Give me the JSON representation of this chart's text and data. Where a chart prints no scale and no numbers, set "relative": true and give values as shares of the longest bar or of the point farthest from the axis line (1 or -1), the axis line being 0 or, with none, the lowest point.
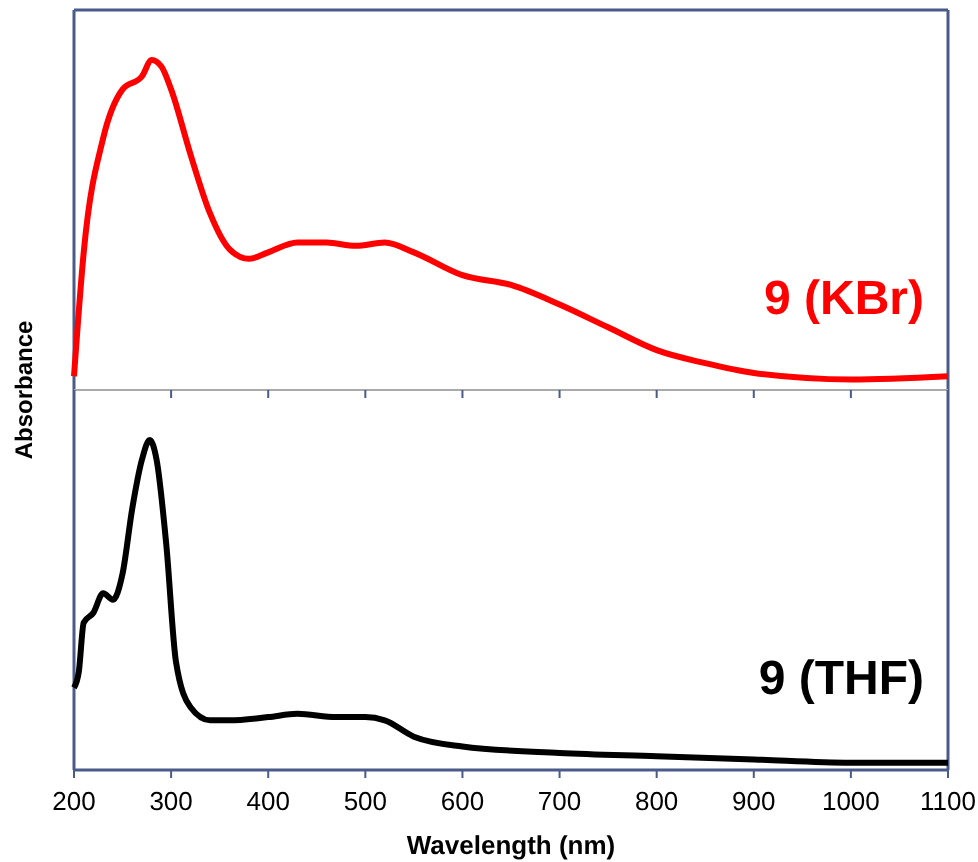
{
  "chart_data": [
    {
      "type": "line",
      "ylabel": "Absorbance",
      "relative": true,
      "xlim": [
        200,
        1100
      ],
      "xticks": [
        200,
        300,
        400,
        500,
        600,
        700,
        800,
        900,
        1000,
        1100
      ],
      "tick_labels": false,
      "grid": false,
      "series": [
        {
          "name": "9 (KBr)",
          "color": "#ff0000",
          "x": [
            200,
            210,
            230,
            250,
            270,
            280,
            290,
            300,
            320,
            340,
            360,
            380,
            400,
            430,
            460,
            490,
            520,
            550,
            600,
            650,
            700,
            750,
            800,
            850,
            900,
            1000,
            1100
          ],
          "values": [
            0.03,
            0.41,
            0.76,
            0.91,
            0.95,
            1.0,
            0.98,
            0.91,
            0.71,
            0.53,
            0.42,
            0.39,
            0.41,
            0.44,
            0.44,
            0.43,
            0.44,
            0.41,
            0.34,
            0.31,
            0.25,
            0.18,
            0.11,
            0.07,
            0.04,
            0.02,
            0.03
          ]
        }
      ]
    },
    {
      "type": "line",
      "xlabel": "Wavelength (nm)",
      "relative": true,
      "xlim": [
        200,
        1100
      ],
      "xticks": [
        200,
        300,
        400,
        500,
        600,
        700,
        800,
        900,
        1000,
        1100
      ],
      "grid": false,
      "series": [
        {
          "name": "9 (THF)",
          "color": "#000000",
          "x": [
            200,
            205,
            210,
            220,
            230,
            240,
            250,
            260,
            270,
            278,
            285,
            295,
            305,
            320,
            340,
            360,
            400,
            430,
            470,
            500,
            520,
            550,
            600,
            700,
            800,
            900,
            1000,
            1100
          ],
          "values": [
            0.24,
            0.29,
            0.44,
            0.47,
            0.53,
            0.51,
            0.59,
            0.79,
            0.94,
            1.0,
            0.94,
            0.68,
            0.32,
            0.18,
            0.14,
            0.14,
            0.15,
            0.16,
            0.15,
            0.15,
            0.14,
            0.09,
            0.06,
            0.04,
            0.03,
            0.02,
            0.01,
            0.01
          ]
        }
      ]
    }
  ]
}
